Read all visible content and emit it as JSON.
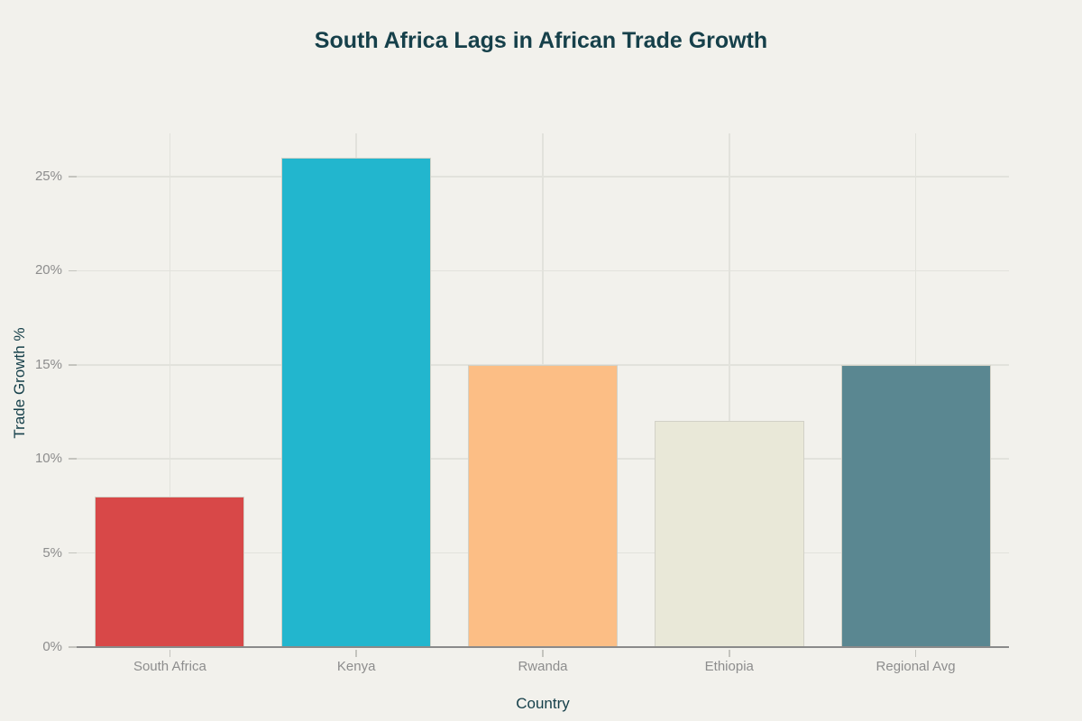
{
  "page": {
    "background_color": "#F2F1EC"
  },
  "chart_data": {
    "type": "bar",
    "title": "South Africa Lags in African Trade Growth",
    "xlabel": "Country",
    "ylabel": "Trade Growth %",
    "categories": [
      "South Africa",
      "Kenya",
      "Rwanda",
      "Ethiopia",
      "Regional Avg"
    ],
    "values": [
      8,
      26,
      15,
      12,
      15
    ],
    "unit": "%",
    "ylim": [
      0,
      27.3
    ],
    "y_ticks": [
      0,
      5,
      10,
      15,
      20,
      25
    ],
    "y_tick_labels": [
      "0%",
      "5%",
      "10%",
      "15%",
      "20%",
      "25%"
    ],
    "grid": true,
    "legend_position": "none",
    "bar_colors": [
      "#D84848",
      "#22B6CE",
      "#FCBE85",
      "#E9E8D8",
      "#5A8791"
    ],
    "title_color": "#16404A",
    "axis_title_color": "#16404A",
    "tick_label_color": "#8D8D8D",
    "gridline_color": "#E2E2DC",
    "axis_line_color": "#8A8A8A",
    "bar_border_color": "#D2D1C7"
  }
}
